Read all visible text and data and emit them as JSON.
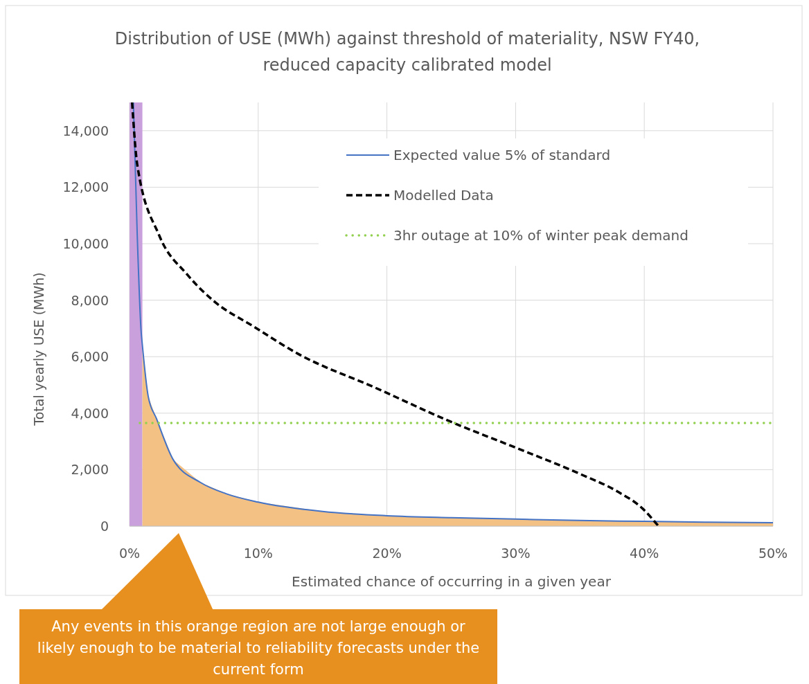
{
  "chart_data": {
    "type": "line",
    "title": "Distribution of USE (MWh) against threshold of materiality, NSW FY40, reduced capacity calibrated model",
    "xlabel": "Estimated chance of occurring in a given year",
    "ylabel": "Total yearly USE (MWh)",
    "xlim": [
      0,
      50
    ],
    "xticks": [
      {
        "value": 0,
        "label": "0%"
      },
      {
        "value": 10,
        "label": "10%"
      },
      {
        "value": 20,
        "label": "20%"
      },
      {
        "value": 30,
        "label": "30%"
      },
      {
        "value": 40,
        "label": "40%"
      },
      {
        "value": 50,
        "label": "50%"
      }
    ],
    "ylim": [
      0,
      15000
    ],
    "yticks": [
      {
        "value": 0,
        "label": "0"
      },
      {
        "value": 2000,
        "label": "2,000"
      },
      {
        "value": 4000,
        "label": "4,000"
      },
      {
        "value": 6000,
        "label": "6,000"
      },
      {
        "value": 8000,
        "label": "8,000"
      },
      {
        "value": 10000,
        "label": "10,000"
      },
      {
        "value": 12000,
        "label": "12,000"
      },
      {
        "value": 14000,
        "label": "14,000"
      }
    ],
    "grid": true,
    "legend": "top right",
    "marker": "none",
    "bands": [
      {
        "axis": "x",
        "from": 0,
        "to": 1,
        "color": "#c9a0dc"
      }
    ],
    "series": [
      {
        "type": "area",
        "color": "#f4c184",
        "x": [
          1,
          1.45,
          2.1,
          3.4,
          5.5,
          7.5,
          10,
          15,
          20,
          25,
          30,
          35,
          40,
          45,
          50
        ],
        "values": [
          6400,
          4600,
          3800,
          2350,
          1550,
          1150,
          850,
          520,
          370,
          300,
          250,
          200,
          170,
          140,
          120
        ]
      },
      {
        "name": "Expected value 5% of standard",
        "color": "#4472c4",
        "line_style": "solid",
        "x": [
          0.3,
          0.6,
          0.9,
          1,
          1.45,
          2.1,
          3.4,
          5.5,
          7.5,
          10,
          15,
          20,
          25,
          30,
          35,
          40,
          45,
          50
        ],
        "values": [
          15000,
          10300,
          6900,
          6400,
          4600,
          3800,
          2350,
          1550,
          1150,
          850,
          520,
          370,
          300,
          250,
          200,
          170,
          140,
          120
        ]
      },
      {
        "name": "Modelled Data",
        "color": "#000000",
        "line_style": "dashed",
        "x": [
          0.2,
          0.6,
          2.3,
          4.5,
          6.6,
          9.6,
          13.1,
          19.1,
          25,
          30,
          34.9,
          37.9,
          39.9,
          41.1
        ],
        "values": [
          15000,
          12800,
          10300,
          8900,
          7950,
          7080,
          6100,
          4900,
          3690,
          2780,
          1870,
          1230,
          610,
          0
        ]
      },
      {
        "name": "3hr outage at 10% of winter peak demand",
        "color": "#92d050",
        "line_style": "dotted",
        "x": [
          0.8,
          50
        ],
        "values": [
          3650,
          3650
        ]
      }
    ],
    "annotations": [
      "Any events in this orange region are not large enough or likely enough to be material to reliability forecasts under the current form"
    ]
  }
}
